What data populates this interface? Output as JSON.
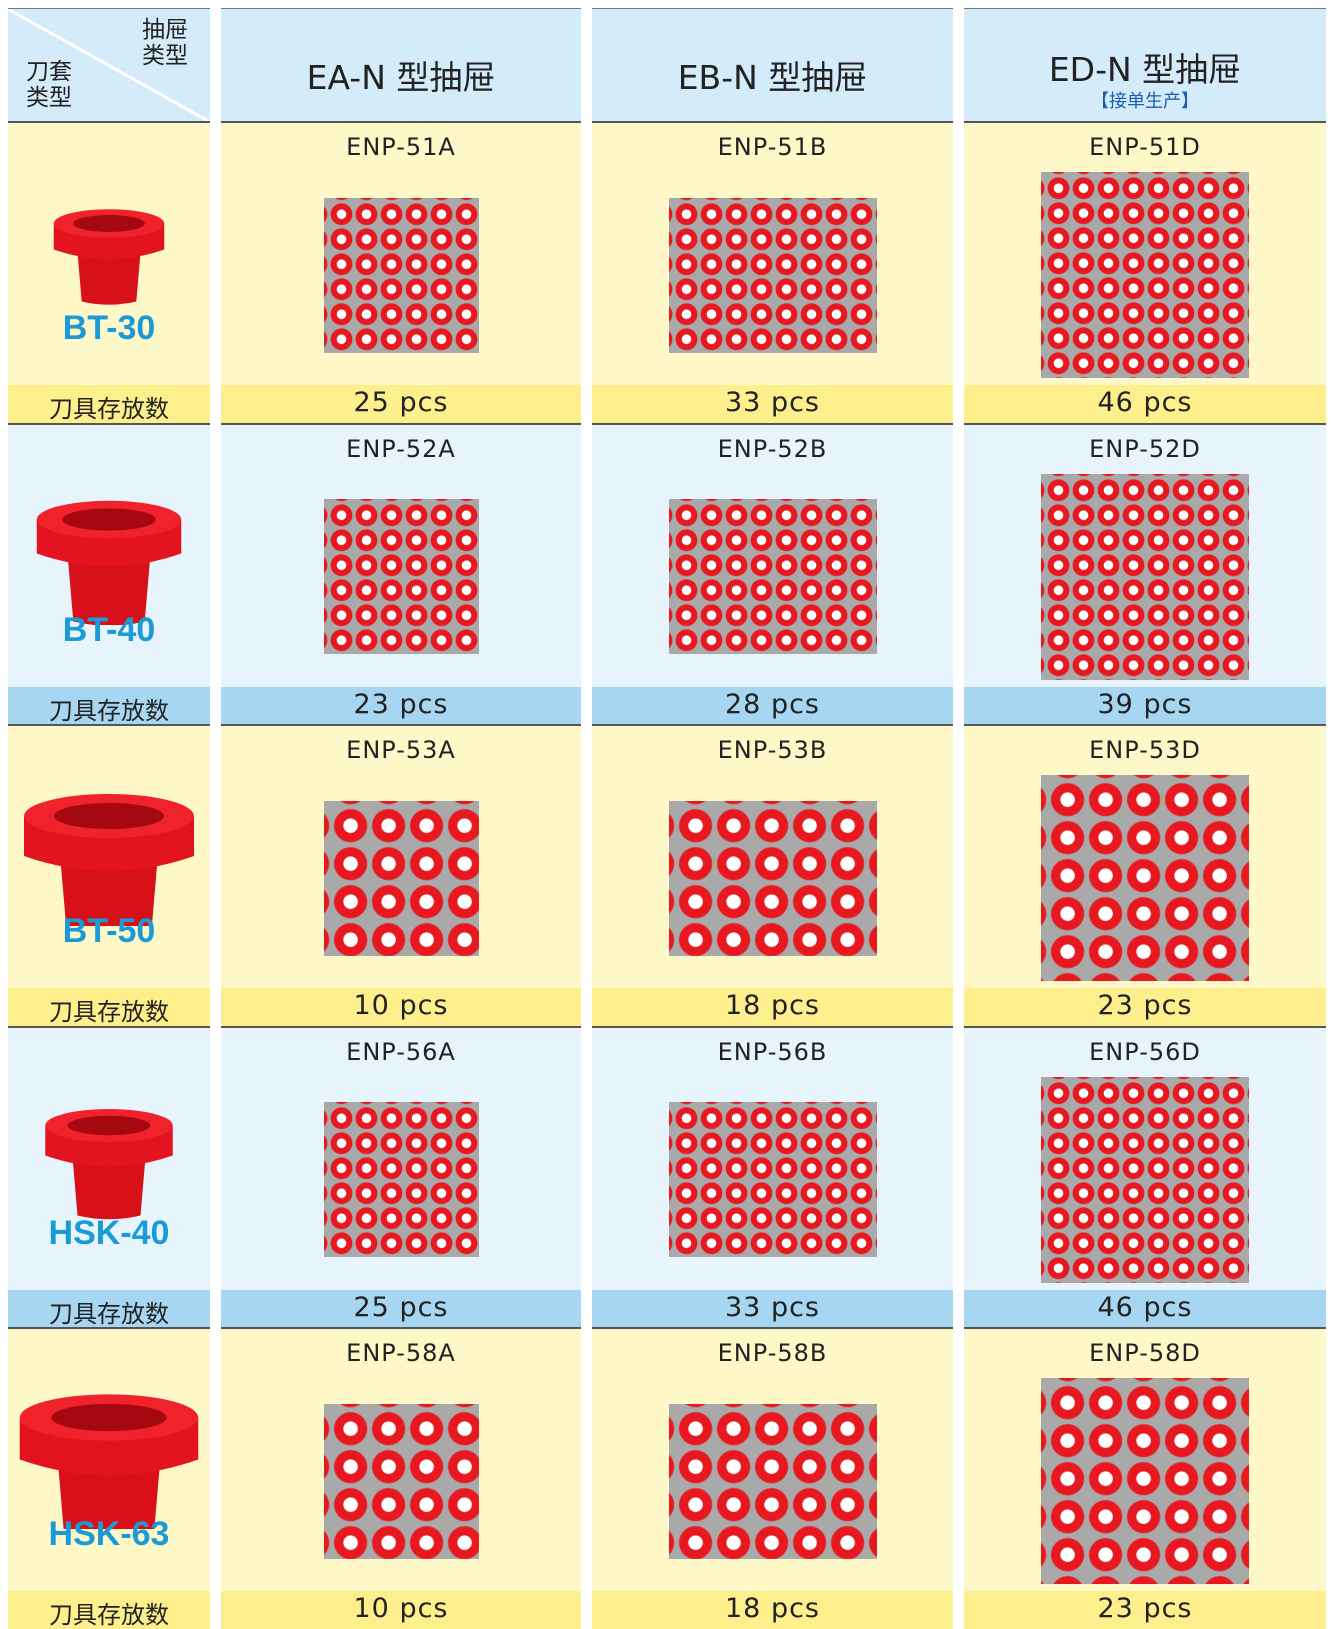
{
  "header": {
    "corner_top": "抽屉类型",
    "corner_bottom": "刀套类型",
    "columns": [
      {
        "title": "EA-N 型抽屉"
      },
      {
        "title": "EB-N 型抽屉"
      },
      {
        "title": "ED-N 型抽屉",
        "note": "【接单生产】"
      }
    ]
  },
  "rows": [
    {
      "tool": "BT-30",
      "count_label": "刀具存放数",
      "models": [
        "ENP-51A",
        "ENP-51B",
        "ENP-51D"
      ],
      "counts": [
        "25 pcs",
        "33 pcs",
        "46 pcs"
      ]
    },
    {
      "tool": "BT-40",
      "count_label": "刀具存放数",
      "models": [
        "ENP-52A",
        "ENP-52B",
        "ENP-52D"
      ],
      "counts": [
        "23 pcs",
        "28 pcs",
        "39 pcs"
      ]
    },
    {
      "tool": "BT-50",
      "count_label": "刀具存放数",
      "models": [
        "ENP-53A",
        "ENP-53B",
        "ENP-53D"
      ],
      "counts": [
        "10 pcs",
        "18 pcs",
        "23 pcs"
      ]
    },
    {
      "tool": "HSK-40",
      "count_label": "刀具存放数",
      "models": [
        "ENP-56A",
        "ENP-56B",
        "ENP-56D"
      ],
      "counts": [
        "25 pcs",
        "33 pcs",
        "46 pcs"
      ]
    },
    {
      "tool": "HSK-63",
      "count_label": "刀具存放数",
      "models": [
        "ENP-58A",
        "ENP-58B",
        "ENP-58D"
      ],
      "counts": [
        "10 pcs",
        "18 pcs",
        "23 pcs"
      ]
    }
  ]
}
